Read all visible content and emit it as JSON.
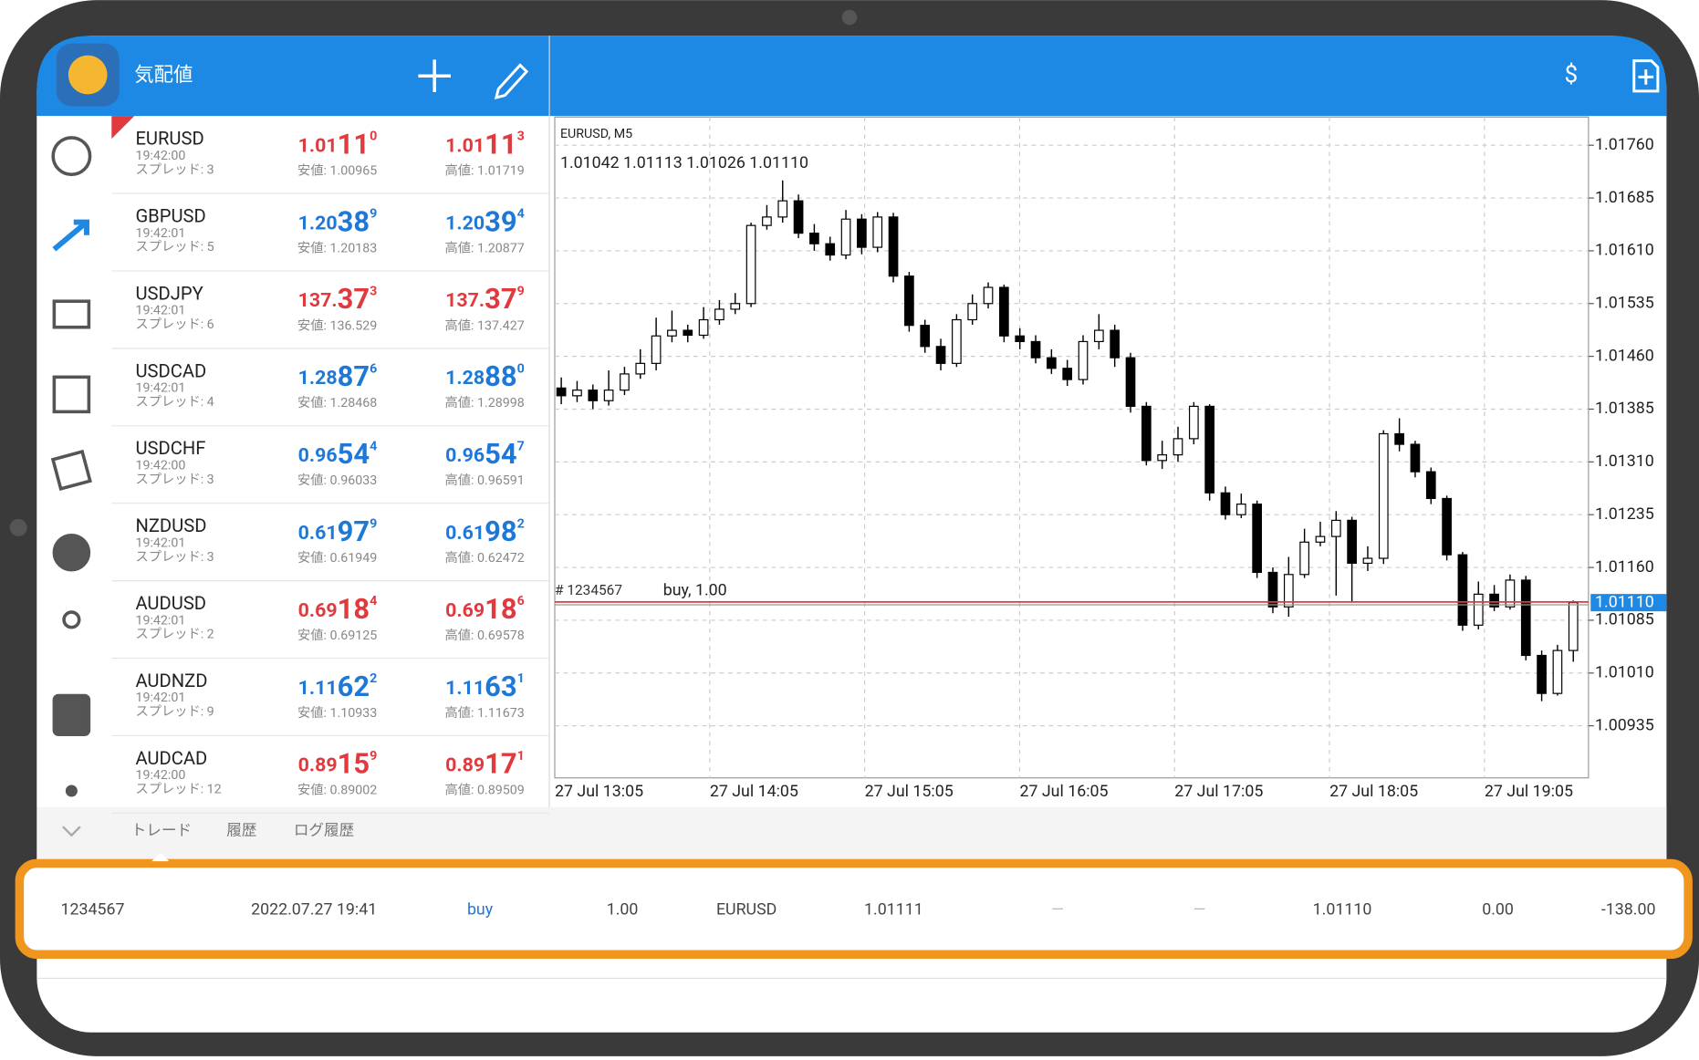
{
  "header": {
    "title": "気配値"
  },
  "quotes": [
    {
      "symbol": "EURUSD",
      "time": "19:42:00",
      "spread": "スプレッド: 3",
      "color": "#e0393e",
      "bid": [
        "1.01",
        "11",
        "0"
      ],
      "ask": [
        "1.01",
        "11",
        "3"
      ],
      "low": "安値: 1.00965",
      "high": "高値: 1.01719"
    },
    {
      "symbol": "GBPUSD",
      "time": "19:42:01",
      "spread": "スプレッド: 5",
      "color": "#1e78d8",
      "bid": [
        "1.20",
        "38",
        "9"
      ],
      "ask": [
        "1.20",
        "39",
        "4"
      ],
      "low": "安値: 1.20183",
      "high": "高値: 1.20877"
    },
    {
      "symbol": "USDJPY",
      "time": "19:42:01",
      "spread": "スプレッド: 6",
      "color": "#e0393e",
      "bid": [
        "137.",
        "37",
        "3"
      ],
      "ask": [
        "137.",
        "37",
        "9"
      ],
      "low": "安値: 136.529",
      "high": "高値: 137.427"
    },
    {
      "symbol": "USDCAD",
      "time": "19:42:01",
      "spread": "スプレッド: 4",
      "color": "#1e78d8",
      "bid": [
        "1.28",
        "87",
        "6"
      ],
      "ask": [
        "1.28",
        "88",
        "0"
      ],
      "low": "安値: 1.28468",
      "high": "高値: 1.28998"
    },
    {
      "symbol": "USDCHF",
      "time": "19:42:00",
      "spread": "スプレッド: 3",
      "color": "#1e78d8",
      "bid": [
        "0.96",
        "54",
        "4"
      ],
      "ask": [
        "0.96",
        "54",
        "7"
      ],
      "low": "安値: 0.96033",
      "high": "高値: 0.96591"
    },
    {
      "symbol": "NZDUSD",
      "time": "19:42:01",
      "spread": "スプレッド: 3",
      "color": "#1e78d8",
      "bid": [
        "0.61",
        "97",
        "9"
      ],
      "ask": [
        "0.61",
        "98",
        "2"
      ],
      "low": "安値: 0.61949",
      "high": "高値: 0.62472"
    },
    {
      "symbol": "AUDUSD",
      "time": "19:42:01",
      "spread": "スプレッド: 2",
      "color": "#e0393e",
      "bid": [
        "0.69",
        "18",
        "4"
      ],
      "ask": [
        "0.69",
        "18",
        "6"
      ],
      "low": "安値: 0.69125",
      "high": "高値: 0.69578"
    },
    {
      "symbol": "AUDNZD",
      "time": "19:42:01",
      "spread": "スプレッド: 9",
      "color": "#1e78d8",
      "bid": [
        "1.11",
        "62",
        "2"
      ],
      "ask": [
        "1.11",
        "63",
        "1"
      ],
      "low": "安値: 1.10933",
      "high": "高値: 1.11673"
    },
    {
      "symbol": "AUDCAD",
      "time": "19:42:00",
      "spread": "スプレッド: 12",
      "color": "#e0393e",
      "bid": [
        "0.89",
        "15",
        "9"
      ],
      "ask": [
        "0.89",
        "17",
        "1"
      ],
      "low": "安値: 0.89002",
      "high": "高値: 0.89509"
    }
  ],
  "chart_data": {
    "type": "candlestick",
    "title": "EURUSD, M5",
    "ohlc_text": "1.01042 1.01113 1.01026 1.01110",
    "ylim": [
      1.00861,
      1.018
    ],
    "yticks": [
      {
        "value": 1.0176,
        "label": "1.01760"
      },
      {
        "value": 1.01685,
        "label": "1.01685"
      },
      {
        "value": 1.0161,
        "label": "1.01610"
      },
      {
        "value": 1.01535,
        "label": "1.01535"
      },
      {
        "value": 1.0146,
        "label": "1.01460"
      },
      {
        "value": 1.01385,
        "label": "1.01385"
      },
      {
        "value": 1.0131,
        "label": "1.01310"
      },
      {
        "value": 1.01235,
        "label": "1.01235"
      },
      {
        "value": 1.0116,
        "label": "1.01160"
      },
      {
        "value": 1.01085,
        "label": "1.01085"
      },
      {
        "value": 1.0101,
        "label": "1.01010"
      },
      {
        "value": 1.00935,
        "label": "1.00935"
      }
    ],
    "categories": [
      "27 Jul 13:05",
      "27 Jul 14:05",
      "27 Jul 15:05",
      "27 Jul 16:05",
      "27 Jul 17:05",
      "27 Jul 18:05",
      "27 Jul 19:05"
    ],
    "grid": true,
    "up_color": "#ffffff",
    "down_color": "#000000",
    "open": [
      1.01415,
      1.01404,
      1.01412,
      1.01397,
      1.01412,
      1.01435,
      1.0145,
      1.01489,
      1.01497,
      1.0149,
      1.01512,
      1.01527,
      1.01535,
      1.01646,
      1.01658,
      1.01681,
      1.01635,
      1.0162,
      1.01604,
      1.01655,
      1.01615,
      1.01658,
      1.01574,
      1.01504,
      1.01474,
      1.0145,
      1.01512,
      1.01535,
      1.01558,
      1.01489,
      1.01481,
      1.01458,
      1.01443,
      1.01427,
      1.01481,
      1.01497,
      1.01458,
      1.01389,
      1.01312,
      1.0132,
      1.01343,
      1.01389,
      1.01266,
      1.01235,
      1.0125,
      1.01153,
      1.01104,
      1.0115,
      1.01196,
      1.01204,
      1.01227,
      1.01166,
      1.01173,
      1.0135,
      1.01335,
      1.01296,
      1.01258,
      1.01178,
      1.01078,
      1.01122,
      1.01104,
      1.01142,
      1.01035,
      1.00981,
      1.01042
    ],
    "high": [
      1.0143,
      1.01425,
      1.0142,
      1.0144,
      1.01445,
      1.0147,
      1.01515,
      1.01525,
      1.01505,
      1.0153,
      1.0154,
      1.0155,
      1.0165,
      1.01675,
      1.0171,
      1.0169,
      1.01648,
      1.0163,
      1.01668,
      1.01662,
      1.01665,
      1.01664,
      1.0158,
      1.01512,
      1.01485,
      1.0152,
      1.01548,
      1.01565,
      1.01562,
      1.015,
      1.0149,
      1.0147,
      1.01455,
      1.0149,
      1.0152,
      1.01505,
      1.01465,
      1.01395,
      1.0134,
      1.0136,
      1.01395,
      1.01392,
      1.01275,
      1.01265,
      1.01255,
      1.0116,
      1.01175,
      1.01215,
      1.01225,
      1.0124,
      1.01232,
      1.0119,
      1.01355,
      1.01372,
      1.0134,
      1.01302,
      1.01262,
      1.01182,
      1.0114,
      1.01135,
      1.0115,
      1.01148,
      1.01042,
      1.0105,
      1.01113
    ],
    "low": [
      1.01392,
      1.01395,
      1.01385,
      1.0139,
      1.01405,
      1.01428,
      1.0144,
      1.0148,
      1.0148,
      1.01485,
      1.01505,
      1.0152,
      1.0153,
      1.0164,
      1.0165,
      1.01628,
      1.0161,
      1.01596,
      1.01598,
      1.01605,
      1.01608,
      1.01565,
      1.01495,
      1.01465,
      1.0144,
      1.01445,
      1.01505,
      1.01528,
      1.0148,
      1.0147,
      1.0145,
      1.01435,
      1.01418,
      1.0142,
      1.0147,
      1.01445,
      1.0138,
      1.01305,
      1.013,
      1.0131,
      1.01335,
      1.01255,
      1.01228,
      1.0123,
      1.01145,
      1.01095,
      1.0109,
      1.01145,
      1.0119,
      1.0112,
      1.0111,
      1.01155,
      1.01165,
      1.01325,
      1.01288,
      1.0125,
      1.0117,
      1.0107,
      1.01072,
      1.01098,
      1.011,
      1.01028,
      1.0097,
      1.00978,
      1.01026
    ],
    "close": [
      1.01404,
      1.01412,
      1.01397,
      1.01412,
      1.01435,
      1.0145,
      1.01489,
      1.01497,
      1.0149,
      1.01512,
      1.01527,
      1.01535,
      1.01646,
      1.01658,
      1.01681,
      1.01635,
      1.0162,
      1.01604,
      1.01655,
      1.01615,
      1.01658,
      1.01574,
      1.01504,
      1.01474,
      1.0145,
      1.01512,
      1.01535,
      1.01558,
      1.01489,
      1.01481,
      1.01458,
      1.01443,
      1.01427,
      1.01481,
      1.01497,
      1.01458,
      1.01389,
      1.01312,
      1.0132,
      1.01343,
      1.01389,
      1.01266,
      1.01235,
      1.0125,
      1.01153,
      1.01104,
      1.0115,
      1.01196,
      1.01204,
      1.01227,
      1.01166,
      1.01173,
      1.0135,
      1.01335,
      1.01296,
      1.01258,
      1.01178,
      1.01078,
      1.01122,
      1.01104,
      1.01142,
      1.01035,
      1.00981,
      1.01042,
      1.0111
    ],
    "order": {
      "ticket": "# 1234567",
      "label": "buy, 1.00",
      "price": 1.01111,
      "color": "#e0393e"
    },
    "current": {
      "price": 1.0111,
      "label": "1.01110",
      "color": "#1e88e5"
    }
  },
  "tabs": [
    "トレード",
    "履歴",
    "ログ履歴"
  ],
  "trade": [
    "1234567",
    "2022.07.27 19:41",
    "buy",
    "1.00",
    "EURUSD",
    "1.01111",
    "—",
    "—",
    "1.01110",
    "0.00",
    "-138.00"
  ]
}
